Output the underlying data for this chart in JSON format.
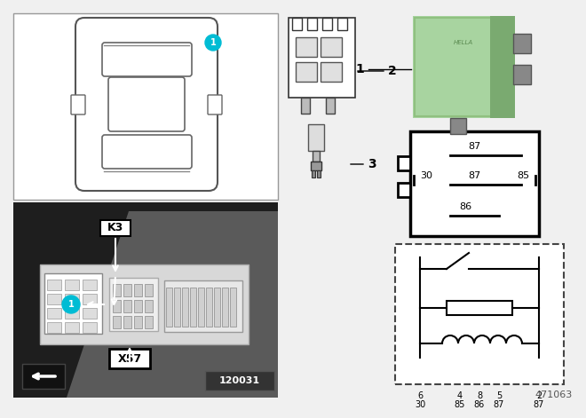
{
  "bg_color": "#f0f0f0",
  "white": "#ffffff",
  "black": "#000000",
  "dark_gray": "#222222",
  "mid_gray": "#888888",
  "light_gray": "#cccccc",
  "cyan": "#00bcd4",
  "green_relay": "#a8d4a0",
  "green_relay2": "#90c080",
  "diag_ref": "471063",
  "photo_ref": "120031",
  "car_label": "1",
  "part_labels": [
    "1",
    "2",
    "3"
  ],
  "K3": "K3",
  "X57": "X57",
  "pin_top": "87",
  "pin_mid_left": "30",
  "pin_mid_center": "87",
  "pin_mid_right": "85",
  "pin_bot": "86",
  "schem_bot_top": [
    "6",
    "4",
    "8",
    "5",
    "2"
  ],
  "schem_bot_bot": [
    "30",
    "85",
    "86",
    "87",
    "87"
  ]
}
